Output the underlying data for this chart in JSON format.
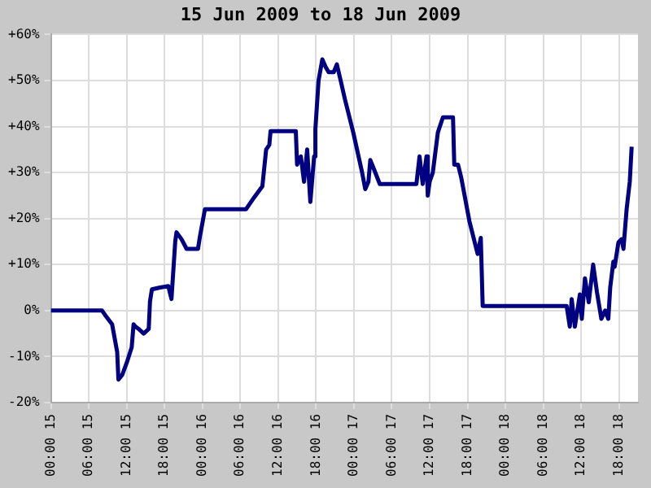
{
  "chart_data": {
    "type": "line",
    "title": "15 Jun 2009 to 18 Jun 2009",
    "series": [
      {
        "color": "#000080",
        "x": [
          "2009-06-15T00:00",
          "2009-06-15T08:06",
          "2009-06-15T08:36",
          "2009-06-15T09:42",
          "2009-06-15T10:30",
          "2009-06-15T10:42",
          "2009-06-15T11:18",
          "2009-06-15T12:06",
          "2009-06-15T12:48",
          "2009-06-15T13:06",
          "2009-06-15T13:24",
          "2009-06-15T13:54",
          "2009-06-15T14:42",
          "2009-06-15T15:30",
          "2009-06-15T15:42",
          "2009-06-15T16:00",
          "2009-06-15T17:18",
          "2009-06-15T18:36",
          "2009-06-15T19:06",
          "2009-06-15T19:42",
          "2009-06-15T19:54",
          "2009-06-15T20:42",
          "2009-06-15T21:30",
          "2009-06-15T23:18",
          "2009-06-15T23:36",
          "2009-06-16T00:24",
          "2009-06-16T06:54",
          "2009-06-16T08:12",
          "2009-06-16T09:30",
          "2009-06-16T10:06",
          "2009-06-16T10:36",
          "2009-06-16T10:48",
          "2009-06-16T14:48",
          "2009-06-16T15:00",
          "2009-06-16T15:36",
          "2009-06-16T16:06",
          "2009-06-16T16:36",
          "2009-06-16T16:54",
          "2009-06-16T17:06",
          "2009-06-16T17:42",
          "2009-06-16T17:54",
          "2009-06-16T18:24",
          "2009-06-16T19:00",
          "2009-06-16T19:30",
          "2009-06-16T20:00",
          "2009-06-16T20:48",
          "2009-06-16T21:18",
          "2009-06-16T21:54",
          "2009-06-16T22:36",
          "2009-06-16T23:54",
          "2009-06-17T01:18",
          "2009-06-17T01:48",
          "2009-06-17T02:18",
          "2009-06-17T02:36",
          "2009-06-17T03:06",
          "2009-06-17T04:06",
          "2009-06-17T09:54",
          "2009-06-17T10:24",
          "2009-06-17T10:54",
          "2009-06-17T11:30",
          "2009-06-17T11:42",
          "2009-06-17T12:00",
          "2009-06-17T12:30",
          "2009-06-17T13:18",
          "2009-06-17T14:06",
          "2009-06-17T15:42",
          "2009-06-17T15:54",
          "2009-06-17T16:30",
          "2009-06-17T17:00",
          "2009-06-17T18:18",
          "2009-06-17T19:36",
          "2009-06-17T20:06",
          "2009-06-17T20:24",
          "2009-06-18T09:42",
          "2009-06-18T10:12",
          "2009-06-18T10:30",
          "2009-06-18T11:00",
          "2009-06-18T11:48",
          "2009-06-18T12:06",
          "2009-06-18T12:36",
          "2009-06-18T13:12",
          "2009-06-18T13:54",
          "2009-06-18T14:30",
          "2009-06-18T15:12",
          "2009-06-18T15:48",
          "2009-06-18T16:18",
          "2009-06-18T16:36",
          "2009-06-18T17:06",
          "2009-06-18T17:18",
          "2009-06-18T17:54",
          "2009-06-18T18:24",
          "2009-06-18T18:42",
          "2009-06-18T19:12",
          "2009-06-18T19:42",
          "2009-06-18T20:00"
        ],
        "values": [
          0,
          0,
          -1,
          -3,
          -9,
          -15,
          -14,
          -11,
          -8,
          -3,
          -3.5,
          -4,
          -5,
          -4,
          2,
          4.6,
          5,
          5.3,
          2.5,
          15,
          17,
          15.5,
          13.4,
          13.4,
          16,
          22,
          22,
          24.6,
          27,
          35,
          36,
          39,
          39,
          31.7,
          33.5,
          28,
          35,
          28,
          23.6,
          33.5,
          39.4,
          50,
          54.6,
          53,
          51.8,
          51.8,
          53.5,
          50,
          45.8,
          38.7,
          30,
          26.4,
          28,
          32.7,
          31,
          27.5,
          27.5,
          33.5,
          27.5,
          33.5,
          25,
          28,
          30,
          38.7,
          42,
          42,
          31.7,
          31.7,
          28.9,
          19.4,
          12.3,
          15.8,
          1,
          1,
          -3.5,
          2.5,
          -3.5,
          3.5,
          -1.8,
          7,
          1.8,
          10,
          4,
          -1.8,
          0,
          -1.8,
          5,
          10.6,
          9.5,
          14.8,
          15.5,
          13.4,
          22,
          28,
          35.6
        ]
      }
    ],
    "xlim": [
      "2009-06-15T00:00",
      "2009-06-18T21:00"
    ],
    "xticks": [
      {
        "value": "2009-06-15T00:00",
        "label": "00:00 15"
      },
      {
        "value": "2009-06-15T06:00",
        "label": "06:00 15"
      },
      {
        "value": "2009-06-15T12:00",
        "label": "12:00 15"
      },
      {
        "value": "2009-06-15T18:00",
        "label": "18:00 15"
      },
      {
        "value": "2009-06-16T00:00",
        "label": "00:00 16"
      },
      {
        "value": "2009-06-16T06:00",
        "label": "06:00 16"
      },
      {
        "value": "2009-06-16T12:00",
        "label": "12:00 16"
      },
      {
        "value": "2009-06-16T18:00",
        "label": "18:00 16"
      },
      {
        "value": "2009-06-17T00:00",
        "label": "00:00 17"
      },
      {
        "value": "2009-06-17T06:00",
        "label": "06:00 17"
      },
      {
        "value": "2009-06-17T12:00",
        "label": "12:00 17"
      },
      {
        "value": "2009-06-17T18:00",
        "label": "18:00 17"
      },
      {
        "value": "2009-06-18T00:00",
        "label": "00:00 18"
      },
      {
        "value": "2009-06-18T06:00",
        "label": "06:00 18"
      },
      {
        "value": "2009-06-18T12:00",
        "label": "12:00 18"
      },
      {
        "value": "2009-06-18T18:00",
        "label": "18:00 18"
      }
    ],
    "ylim": [
      -20,
      60
    ],
    "yticks": [
      {
        "value": -20,
        "label": "-20%"
      },
      {
        "value": -10,
        "label": "-10%"
      },
      {
        "value": 0,
        "label": "0%"
      },
      {
        "value": 10,
        "label": "+10%"
      },
      {
        "value": 20,
        "label": "+20%"
      },
      {
        "value": 30,
        "label": "+30%"
      },
      {
        "value": 40,
        "label": "+40%"
      },
      {
        "value": 50,
        "label": "+50%"
      },
      {
        "value": 60,
        "label": "+60%"
      }
    ],
    "grid": true,
    "legend": false,
    "marker": "none",
    "line_style": "solid"
  }
}
